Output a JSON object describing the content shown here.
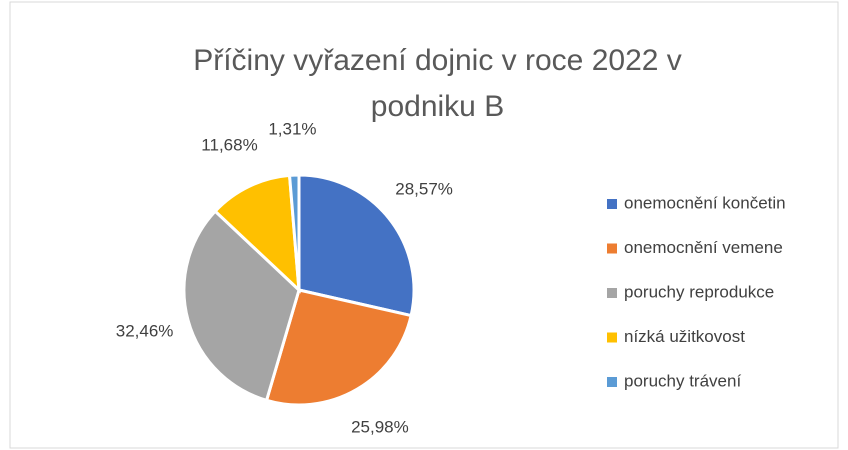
{
  "chart_data": {
    "type": "pie",
    "title": "Příčiny vyřazení dojnic v roce 2022 v podniku B",
    "categories": [
      "onemocnění končetin",
      "onemocnění vemene",
      "poruchy reprodukce",
      "nízká užitkovost",
      "poruchy trávení"
    ],
    "values": [
      28.57,
      25.98,
      32.46,
      11.68,
      1.31
    ],
    "value_labels": [
      "28,57%",
      "25,98%",
      "32,46%",
      "11,68%",
      "1,31%"
    ],
    "colors": [
      "#4472c4",
      "#ed7d31",
      "#a5a5a5",
      "#ffc000",
      "#5b9bd5"
    ],
    "legend": "right"
  }
}
